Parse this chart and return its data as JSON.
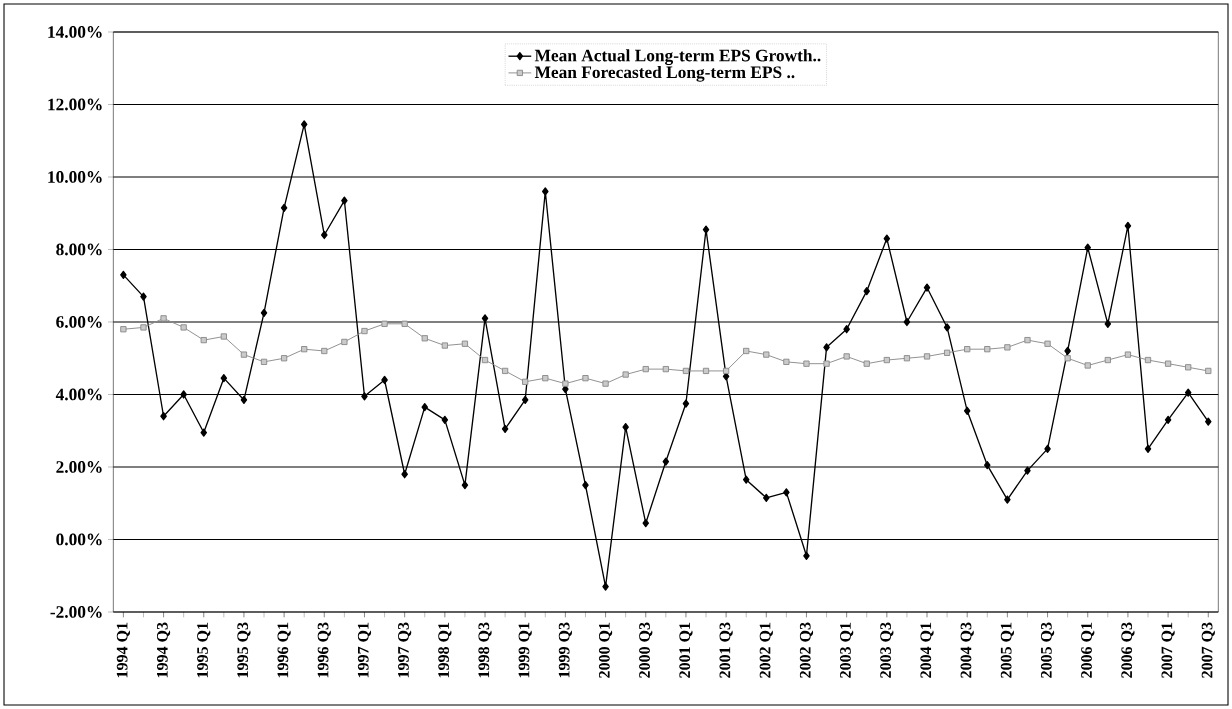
{
  "chart_data": {
    "type": "line",
    "categories": [
      "1994 Q1",
      null,
      "1994 Q3",
      null,
      "1995 Q1",
      null,
      "1995 Q3",
      null,
      "1996 Q1",
      null,
      "1996 Q3",
      null,
      "1997 Q1",
      null,
      "1997 Q3",
      null,
      "1998 Q1",
      null,
      "1998 Q3",
      null,
      "1999 Q1",
      null,
      "1999 Q3",
      null,
      "2000 Q1",
      null,
      "2000 Q3",
      null,
      "2001 Q1",
      null,
      "2001 Q3",
      null,
      "2002 Q1",
      null,
      "2002 Q3",
      null,
      "2003 Q1",
      null,
      "2003 Q3",
      null,
      "2004 Q1",
      null,
      "2004 Q3",
      null,
      "2005 Q1",
      null,
      "2005 Q3",
      null,
      "2006 Q1",
      null,
      "2006 Q3",
      null,
      "2007 Q1",
      null,
      "2007 Q3"
    ],
    "series": [
      {
        "name": "Mean Actual Long-term EPS Growth..",
        "color": "#000000",
        "marker": "diamond",
        "values": [
          7.3,
          6.7,
          3.4,
          4.0,
          2.95,
          4.45,
          3.85,
          6.25,
          9.15,
          11.45,
          8.4,
          9.35,
          3.95,
          4.4,
          1.8,
          3.65,
          3.3,
          1.5,
          6.1,
          3.05,
          3.85,
          9.6,
          4.15,
          1.5,
          -1.3,
          3.1,
          0.45,
          2.15,
          3.75,
          8.55,
          4.5,
          1.65,
          1.15,
          1.3,
          -0.45,
          5.3,
          5.8,
          6.85,
          8.3,
          6.0,
          6.95,
          5.85,
          3.55,
          2.05,
          1.1,
          1.9,
          2.5,
          5.2,
          8.05,
          5.95,
          8.65,
          2.5,
          3.3,
          4.05,
          3.25
        ]
      },
      {
        "name": "Mean Forecasted Long-term EPS ..",
        "color": "#8a8a8a",
        "marker": "square",
        "values": [
          5.8,
          5.85,
          6.1,
          5.85,
          5.5,
          5.6,
          5.1,
          4.9,
          5.0,
          5.25,
          5.2,
          5.45,
          5.75,
          5.95,
          5.95,
          5.55,
          5.35,
          5.4,
          4.95,
          4.65,
          4.35,
          4.45,
          4.3,
          4.45,
          4.3,
          4.55,
          4.7,
          4.7,
          4.65,
          4.65,
          4.65,
          5.2,
          5.1,
          4.9,
          4.85,
          4.85,
          5.05,
          4.85,
          4.95,
          5.0,
          5.05,
          5.15,
          5.25,
          5.25,
          5.3,
          5.5,
          5.4,
          5.0,
          4.8,
          4.95,
          5.1,
          4.95,
          4.85,
          4.75,
          4.65
        ]
      }
    ],
    "ylim": [
      -2,
      14
    ],
    "yticks": [
      {
        "value": -2,
        "label": "-2.00%"
      },
      {
        "value": 0,
        "label": "0.00%"
      },
      {
        "value": 2,
        "label": "2.00%"
      },
      {
        "value": 4,
        "label": "4.00%"
      },
      {
        "value": 6,
        "label": "6.00%"
      },
      {
        "value": 8,
        "label": "8.00%"
      },
      {
        "value": 10,
        "label": "10.00%"
      },
      {
        "value": 12,
        "label": "12.00%"
      },
      {
        "value": 14,
        "label": "14.00%"
      }
    ],
    "grid": "y",
    "legend": "top",
    "line_style": "solid"
  }
}
